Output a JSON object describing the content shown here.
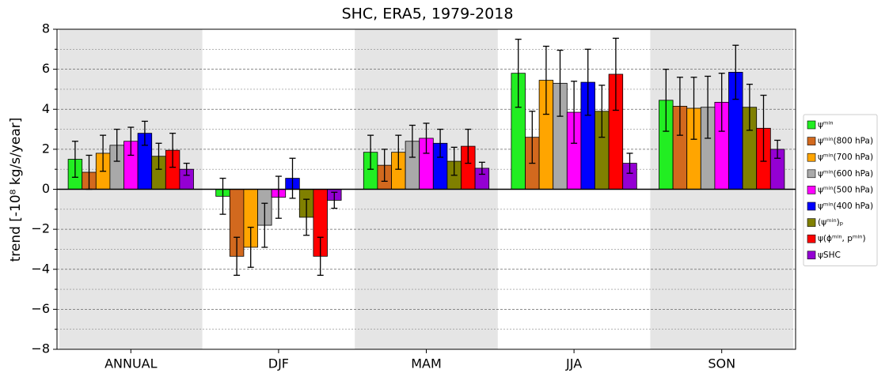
{
  "chart_data": {
    "type": "bar",
    "title": "SHC, ERA5, 1979-2018",
    "y_label": "trend [-10⁸ kg/s/year]",
    "categories": [
      "ANNUAL",
      "DJF",
      "MAM",
      "JJA",
      "SON"
    ],
    "ylim": [
      -8,
      8
    ],
    "yticks": [
      {
        "value": -8,
        "label": "−8"
      },
      {
        "value": -6,
        "label": "−6"
      },
      {
        "value": -4,
        "label": "−4"
      },
      {
        "value": -2,
        "label": "−2"
      },
      0,
      2,
      4,
      6,
      8
    ],
    "minor_yticks": [
      -7,
      -5,
      -3,
      -1,
      1,
      3,
      5,
      7
    ],
    "grid": true,
    "band_shading": "alternate",
    "band_color": "#e5e5e5",
    "legend": "right",
    "series": [
      {
        "name": "ψᵐⁱⁿ",
        "color": "#22ee22",
        "values": [
          1.5,
          -0.35,
          1.85,
          5.8,
          4.45
        ],
        "errors": [
          0.9,
          0.9,
          0.85,
          1.7,
          1.55
        ]
      },
      {
        "name": "ψᵐⁱⁿ(800 hPa)",
        "color": "#d2691e",
        "values": [
          0.85,
          -3.35,
          1.2,
          2.6,
          4.15
        ],
        "errors": [
          0.85,
          0.95,
          0.8,
          1.3,
          1.45
        ]
      },
      {
        "name": "ψᵐⁱⁿ(700 hPa)",
        "color": "#ffa500",
        "values": [
          1.8,
          -2.9,
          1.85,
          5.45,
          4.05
        ],
        "errors": [
          0.9,
          1.0,
          0.85,
          1.7,
          1.55
        ]
      },
      {
        "name": "ψᵐⁱⁿ(600 hPa)",
        "color": "#a9a9a9",
        "values": [
          2.2,
          -1.8,
          2.4,
          5.3,
          4.1
        ],
        "errors": [
          0.8,
          1.1,
          0.8,
          1.65,
          1.55
        ]
      },
      {
        "name": "ψᵐⁱⁿ(500 hPa)",
        "color": "#ff00ff",
        "values": [
          2.4,
          -0.4,
          2.55,
          3.85,
          4.35
        ],
        "errors": [
          0.7,
          1.05,
          0.75,
          1.55,
          1.45
        ]
      },
      {
        "name": "ψᵐⁱⁿ(400 hPa)",
        "color": "#0000ff",
        "values": [
          2.8,
          0.55,
          2.3,
          5.35,
          5.85
        ],
        "errors": [
          0.6,
          1.0,
          0.7,
          1.65,
          1.35
        ]
      },
      {
        "name": "(ψᵐⁱⁿ)ₚ",
        "color": "#808000",
        "values": [
          1.65,
          -1.4,
          1.4,
          3.9,
          4.1
        ],
        "errors": [
          0.65,
          0.9,
          0.7,
          1.3,
          1.15
        ]
      },
      {
        "name": "ψ(ϕᵐⁱⁿ, pᵐⁱⁿ)",
        "color": "#ff0000",
        "values": [
          1.95,
          -3.35,
          2.15,
          5.75,
          3.05
        ],
        "errors": [
          0.85,
          0.95,
          0.85,
          1.8,
          1.65
        ]
      },
      {
        "name": "ψSHC",
        "color": "#9400d3",
        "values": [
          1.0,
          -0.55,
          1.05,
          1.3,
          2.0
        ],
        "errors": [
          0.3,
          0.4,
          0.3,
          0.5,
          0.45
        ]
      }
    ]
  }
}
